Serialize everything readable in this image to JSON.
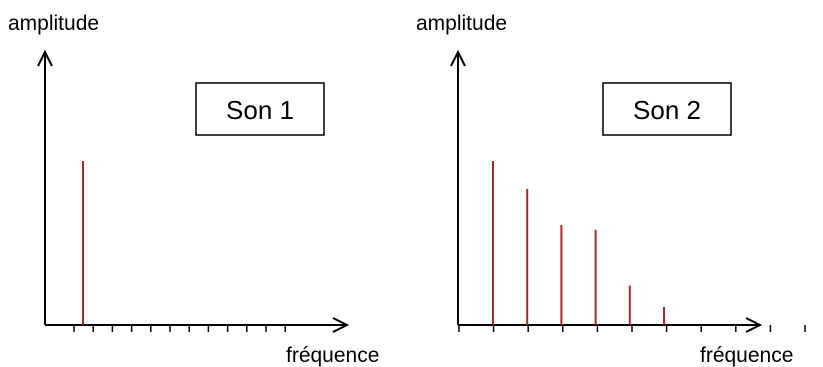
{
  "chart_data": [
    {
      "type": "bar",
      "title": "Son 1",
      "xlabel": "fréquence",
      "ylabel": "amplitude",
      "ylim": [
        0,
        1
      ],
      "x_ticks": 12,
      "bar_color": "#a52a2a",
      "values": [
        0,
        1,
        0,
        0,
        0,
        0,
        0,
        0,
        0,
        0,
        0,
        0
      ]
    },
    {
      "type": "bar",
      "title": "Son 2",
      "xlabel": "fréquence",
      "ylabel": "amplitude",
      "ylim": [
        0,
        1
      ],
      "x_ticks": 12,
      "bar_color": "#a52a2a",
      "values": [
        0,
        1,
        0.83,
        0.61,
        0.58,
        0.24,
        0.11,
        0,
        0,
        0,
        0,
        0
      ]
    }
  ]
}
